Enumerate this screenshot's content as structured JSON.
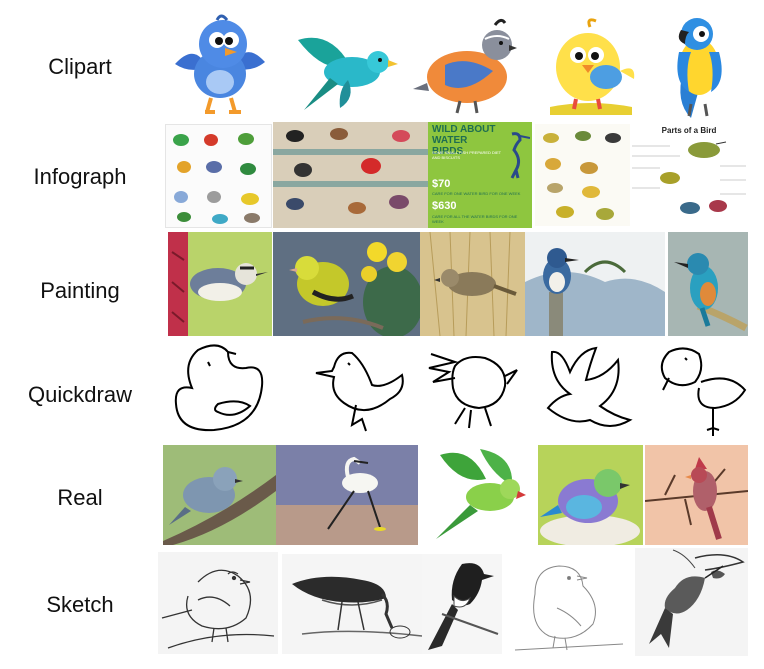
{
  "rows": [
    {
      "label": "Clipart"
    },
    {
      "label": "Infograph"
    },
    {
      "label": "Painting"
    },
    {
      "label": "Quickdraw"
    },
    {
      "label": "Real"
    },
    {
      "label": "Sketch"
    }
  ],
  "infograph": {
    "poster_title": "WILD ABOUT WATER BIRDS",
    "poster_subtitle": "SOME SMALL FISH PREPARED DIET AND BISCUITS",
    "price_1": "$70",
    "price_1_note": "CARE FOR ONE WATER BIRD FOR ONE WEEK",
    "price_2": "$630",
    "price_2_note": "CARE FOR ALL THE WATER BIRDS FOR ONE WEEK",
    "parts_title": "Parts of a Bird"
  },
  "colors": {
    "poster_green": "#8ec63f",
    "poster_dark": "#1f6e50",
    "clipart_blue": "#3f79d6",
    "clipart_yellow": "#ffe04a"
  }
}
